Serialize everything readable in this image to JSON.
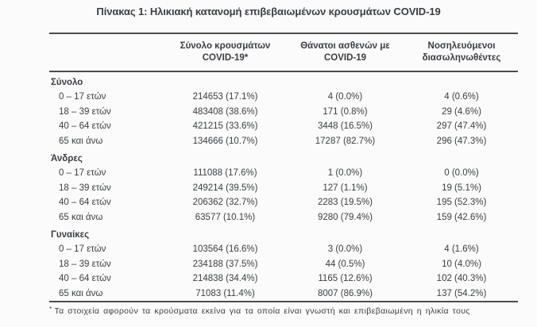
{
  "title": "Πίνακας 1: Ηλικιακή κατανομή επιβεβαιωμένων κρουσμάτων COVID-19",
  "table": {
    "header": {
      "cases_line1": "Σύνολο κρουσμάτων",
      "cases_line2": "COVID-19*",
      "deaths_line1": "Θάνατοι ασθενών με",
      "deaths_line2": "COVID-19",
      "intubated_line1": "Νοσηλευόμενοι",
      "intubated_line2": "διασωληνωθέντες"
    },
    "sections": [
      {
        "name": "Σύνολο",
        "rows": [
          {
            "label": "0 – 17 ετών",
            "cases": "214653 (17.1%)",
            "deaths": "4 (0.0%)",
            "intubated": "4 (0.6%)"
          },
          {
            "label": "18 – 39 ετών",
            "cases": "483408 (38.6%)",
            "deaths": "171 (0.8%)",
            "intubated": "29 (4.6%)"
          },
          {
            "label": "40 – 64 ετών",
            "cases": "421215 (33.6%)",
            "deaths": "3448 (16.5%)",
            "intubated": "297 (47.4%)"
          },
          {
            "label": "65 και άνω",
            "cases": "134666 (10.7%)",
            "deaths": "17287 (82.7%)",
            "intubated": "296 (47.3%)"
          }
        ]
      },
      {
        "name": "Άνδρες",
        "rows": [
          {
            "label": "0 – 17 ετών",
            "cases": "111088 (17.6%)",
            "deaths": "1 (0.0%)",
            "intubated": "0 (0.0%)"
          },
          {
            "label": "18 – 39 ετών",
            "cases": "249214 (39.5%)",
            "deaths": "127 (1.1%)",
            "intubated": "19 (5.1%)"
          },
          {
            "label": "40 – 64 ετών",
            "cases": "206362 (32.7%)",
            "deaths": "2283 (19.5%)",
            "intubated": "195 (52.3%)"
          },
          {
            "label": "65 και άνω",
            "cases": "63577 (10.1%)",
            "deaths": "9280 (79.4%)",
            "intubated": "159 (42.6%)"
          }
        ]
      },
      {
        "name": "Γυναίκες",
        "rows": [
          {
            "label": "0 – 17 ετών",
            "cases": "103564 (16.6%)",
            "deaths": "3 (0.0%)",
            "intubated": "4 (1.6%)"
          },
          {
            "label": "18 – 39 ετών",
            "cases": "234188 (37.5%)",
            "deaths": "44 (0.5%)",
            "intubated": "10 (4.0%)"
          },
          {
            "label": "40 – 64 ετών",
            "cases": "214838 (34.4%)",
            "deaths": "1165 (12.6%)",
            "intubated": "102 (40.3%)"
          },
          {
            "label": "65 και άνω",
            "cases": "71083 (11.4%)",
            "deaths": "8007 (86.9%)",
            "intubated": "137 (54.2%)"
          }
        ]
      }
    ],
    "footnote_marker": "*",
    "footnote_text": "Τα στοιχεία αφορούν τα κρούσματα εκείνα για τα οποία είναι γνωστή και επιβεβαιωμένη η ηλικία τους"
  },
  "colors": {
    "text": "#3c4043",
    "border": "#4d4d4d",
    "background": "#fbfbfb"
  }
}
